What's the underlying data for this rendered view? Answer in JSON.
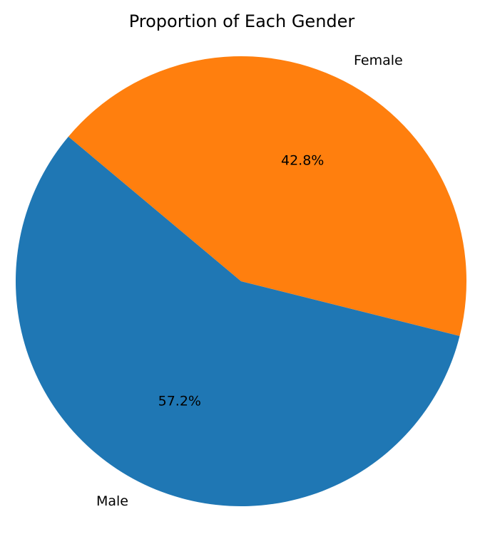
{
  "chart_data": {
    "type": "pie",
    "title": "Proportion of Each Gender",
    "slices": [
      {
        "label": "Male",
        "value": 57.2,
        "pct_label": "57.2%",
        "color": "#1f77b4"
      },
      {
        "label": "Female",
        "value": 42.8,
        "pct_label": "42.8%",
        "color": "#ff7f0e"
      }
    ],
    "start_angle_deg": 140,
    "direction": "counterclockwise"
  }
}
